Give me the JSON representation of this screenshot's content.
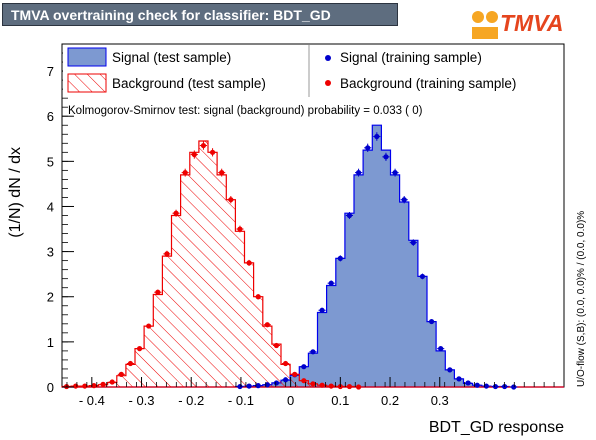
{
  "header": {
    "title": "TMVA overtraining check for classifier: BDT_GD",
    "logo_text": "TMVA"
  },
  "chart_data": {
    "type": "histogram",
    "title": "TMVA overtraining check for classifier: BDT_GD",
    "xlabel": "BDT_GD response",
    "ylabel": "(1/N) dN / dx",
    "xlim": [
      -0.46,
      0.55
    ],
    "ylim": [
      0,
      7.6
    ],
    "bin_width": 0.01836,
    "bin_start": -0.46,
    "x_ticks": [
      "- 0.4",
      "- 0.3",
      "- 0.2",
      "- 0.1",
      "0",
      "0.1",
      "0.2",
      "0.3"
    ],
    "x_tick_values": [
      -0.4,
      -0.3,
      -0.2,
      -0.1,
      0,
      0.1,
      0.2,
      0.3
    ],
    "y_ticks": [
      "0",
      "1",
      "2",
      "3",
      "4",
      "5",
      "6",
      "7"
    ],
    "y_tick_values": [
      0,
      1,
      2,
      3,
      4,
      5,
      6,
      7
    ],
    "legend_placement": "top",
    "series": [
      {
        "name": "Signal (test sample)",
        "style": "filled",
        "color": "#7d99d1",
        "line_color": "#0000ee",
        "values": [
          0,
          0,
          0,
          0,
          0,
          0,
          0,
          0,
          0,
          0,
          0,
          0,
          0,
          0,
          0,
          0,
          0,
          0,
          0,
          0.01,
          0.02,
          0.03,
          0.05,
          0.09,
          0.15,
          0.26,
          0.45,
          0.75,
          1.65,
          2.25,
          2.85,
          3.85,
          4.7,
          5.25,
          5.8,
          5.25,
          4.7,
          4.1,
          3.25,
          2.45,
          1.45,
          0.8,
          0.38,
          0.18,
          0.08,
          0.04,
          0.02,
          0.01,
          0.01,
          0.0,
          0.0,
          0,
          0,
          0,
          0
        ]
      },
      {
        "name": "Background (test sample)",
        "style": "hatched",
        "color": "#ee0000",
        "values": [
          0.01,
          0.02,
          0.02,
          0.03,
          0.05,
          0.1,
          0.25,
          0.5,
          0.85,
          1.35,
          2.05,
          2.9,
          3.8,
          4.7,
          5.2,
          5.45,
          5.2,
          4.7,
          4.15,
          3.45,
          2.75,
          2.0,
          1.35,
          0.95,
          0.5,
          0.28,
          0.14,
          0.07,
          0.04,
          0.02,
          0.01,
          0.01,
          0.0,
          0.0,
          0,
          0,
          0,
          0,
          0,
          0,
          0,
          0,
          0,
          0,
          0,
          0,
          0,
          0,
          0,
          0,
          0,
          0,
          0,
          0,
          0
        ]
      },
      {
        "name": "Signal (training sample)",
        "style": "points",
        "color": "#0000cc",
        "values": [
          null,
          null,
          null,
          null,
          null,
          null,
          null,
          null,
          null,
          null,
          null,
          null,
          null,
          null,
          null,
          null,
          null,
          null,
          null,
          0.01,
          0.02,
          0.03,
          0.05,
          0.09,
          0.16,
          0.27,
          0.45,
          0.78,
          1.7,
          2.3,
          2.85,
          3.8,
          4.75,
          5.3,
          5.55,
          5.1,
          4.75,
          4.15,
          3.2,
          2.45,
          1.45,
          0.85,
          0.38,
          0.18,
          0.09,
          0.04,
          0.02,
          0.01,
          0.01,
          0.0,
          null,
          null,
          null,
          null,
          null
        ]
      },
      {
        "name": "Background (training sample)",
        "style": "points",
        "color": "#ee0000",
        "values": [
          0.01,
          0.02,
          0.02,
          0.03,
          0.06,
          0.11,
          0.28,
          0.52,
          0.85,
          1.35,
          2.1,
          2.95,
          3.85,
          4.75,
          5.15,
          5.35,
          5.2,
          4.75,
          4.15,
          3.5,
          2.75,
          2.0,
          1.38,
          0.92,
          0.52,
          0.28,
          0.14,
          0.07,
          0.04,
          0.02,
          0.01,
          0.01,
          0.0,
          null,
          null,
          null,
          null,
          null,
          null,
          null,
          null,
          null,
          null,
          null,
          null,
          null,
          null,
          null,
          null,
          null,
          null,
          null,
          null,
          null,
          null
        ]
      }
    ],
    "annotation": "Kolmogorov-Smirnov test: signal (background) probability = 0.033 (    0)",
    "side_note": "U/O-flow (S,B): (0.0, 0.0)% / (0.0, 0.0)%"
  }
}
